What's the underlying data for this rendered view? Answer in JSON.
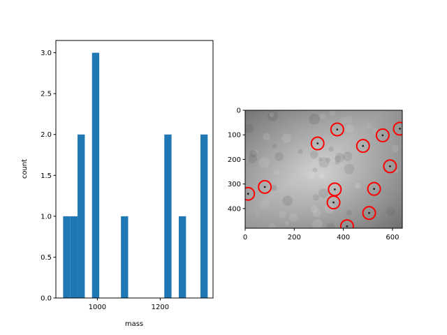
{
  "chart_data": [
    {
      "type": "bar",
      "title": "",
      "xlabel": "mass",
      "ylabel": "count",
      "xlim": [
        868,
        1368
      ],
      "ylim": [
        0,
        3.15
      ],
      "xticks": [
        1000,
        1200
      ],
      "xtick_labels": [
        "1000",
        "1200"
      ],
      "yticks": [
        0.0,
        0.5,
        1.0,
        1.5,
        2.0,
        2.5,
        3.0
      ],
      "ytick_labels": [
        "0.0",
        "0.5",
        "1.0",
        "1.5",
        "2.0",
        "2.5",
        "3.0"
      ],
      "bin_edges": [
        891,
        914,
        937,
        960,
        983,
        1006,
        1029,
        1052,
        1075,
        1098,
        1121,
        1144,
        1167,
        1190,
        1213,
        1236,
        1259,
        1282,
        1305,
        1328,
        1351
      ],
      "values": [
        1,
        1,
        2,
        0,
        3,
        0,
        0,
        0,
        1,
        0,
        0,
        0,
        0,
        0,
        2,
        0,
        1,
        0,
        0,
        2
      ],
      "bar_color": "#1f77b4",
      "grid": false
    },
    {
      "type": "image",
      "title": "",
      "xlim": [
        0,
        640
      ],
      "ylim": [
        480,
        0
      ],
      "xticks": [
        0,
        200,
        400,
        600
      ],
      "xtick_labels": [
        "0",
        "200",
        "400",
        "600"
      ],
      "yticks": [
        0,
        100,
        200,
        300,
        400
      ],
      "ytick_labels": [
        "0",
        "100",
        "200",
        "300",
        "400"
      ],
      "circle_color": "#ff0000",
      "circles": [
        {
          "x": 375,
          "y": 78
        },
        {
          "x": 630,
          "y": 75
        },
        {
          "x": 560,
          "y": 102
        },
        {
          "x": 295,
          "y": 135
        },
        {
          "x": 480,
          "y": 145
        },
        {
          "x": 590,
          "y": 228
        },
        {
          "x": 80,
          "y": 312
        },
        {
          "x": 365,
          "y": 322
        },
        {
          "x": 525,
          "y": 320
        },
        {
          "x": 12,
          "y": 340
        },
        {
          "x": 360,
          "y": 375
        },
        {
          "x": 505,
          "y": 418
        },
        {
          "x": 415,
          "y": 472
        }
      ],
      "grid": false
    }
  ]
}
